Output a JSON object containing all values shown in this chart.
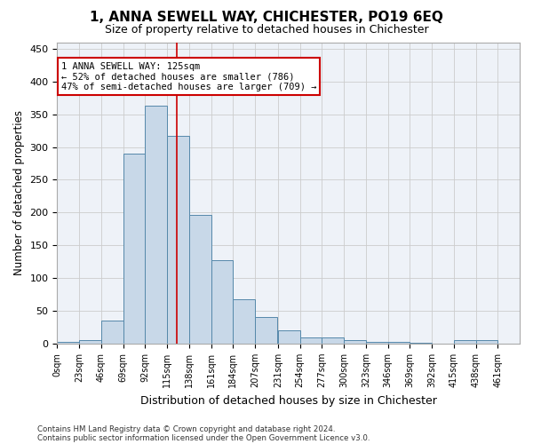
{
  "title": "1, ANNA SEWELL WAY, CHICHESTER, PO19 6EQ",
  "subtitle": "Size of property relative to detached houses in Chichester",
  "xlabel": "Distribution of detached houses by size in Chichester",
  "ylabel": "Number of detached properties",
  "bar_color": "#c8d8e8",
  "bar_edge_color": "#5588aa",
  "categories": [
    "0sqm",
    "23sqm",
    "46sqm",
    "69sqm",
    "92sqm",
    "115sqm",
    "138sqm",
    "161sqm",
    "184sqm",
    "207sqm",
    "231sqm",
    "254sqm",
    "277sqm",
    "300sqm",
    "323sqm",
    "346sqm",
    "369sqm",
    "392sqm",
    "415sqm",
    "438sqm",
    "461sqm"
  ],
  "bin_edges": [
    0,
    23,
    46,
    69,
    92,
    115,
    138,
    161,
    184,
    207,
    231,
    254,
    277,
    300,
    323,
    346,
    369,
    392,
    415,
    438,
    461,
    484
  ],
  "values": [
    2,
    5,
    35,
    290,
    363,
    317,
    197,
    127,
    68,
    40,
    20,
    10,
    10,
    5,
    2,
    2,
    1,
    0,
    5,
    5,
    0
  ],
  "property_size": 125,
  "vline_color": "#cc0000",
  "annotation_line1": "1 ANNA SEWELL WAY: 125sqm",
  "annotation_line2": "← 52% of detached houses are smaller (786)",
  "annotation_line3": "47% of semi-detached houses are larger (709) →",
  "annotation_box_color": "#ffffff",
  "annotation_box_edge": "#cc0000",
  "footer_line1": "Contains HM Land Registry data © Crown copyright and database right 2024.",
  "footer_line2": "Contains public sector information licensed under the Open Government Licence v3.0.",
  "ylim": [
    0,
    460
  ],
  "yticks": [
    0,
    50,
    100,
    150,
    200,
    250,
    300,
    350,
    400,
    450
  ],
  "grid_color": "#cccccc",
  "background_color": "#eef2f8"
}
